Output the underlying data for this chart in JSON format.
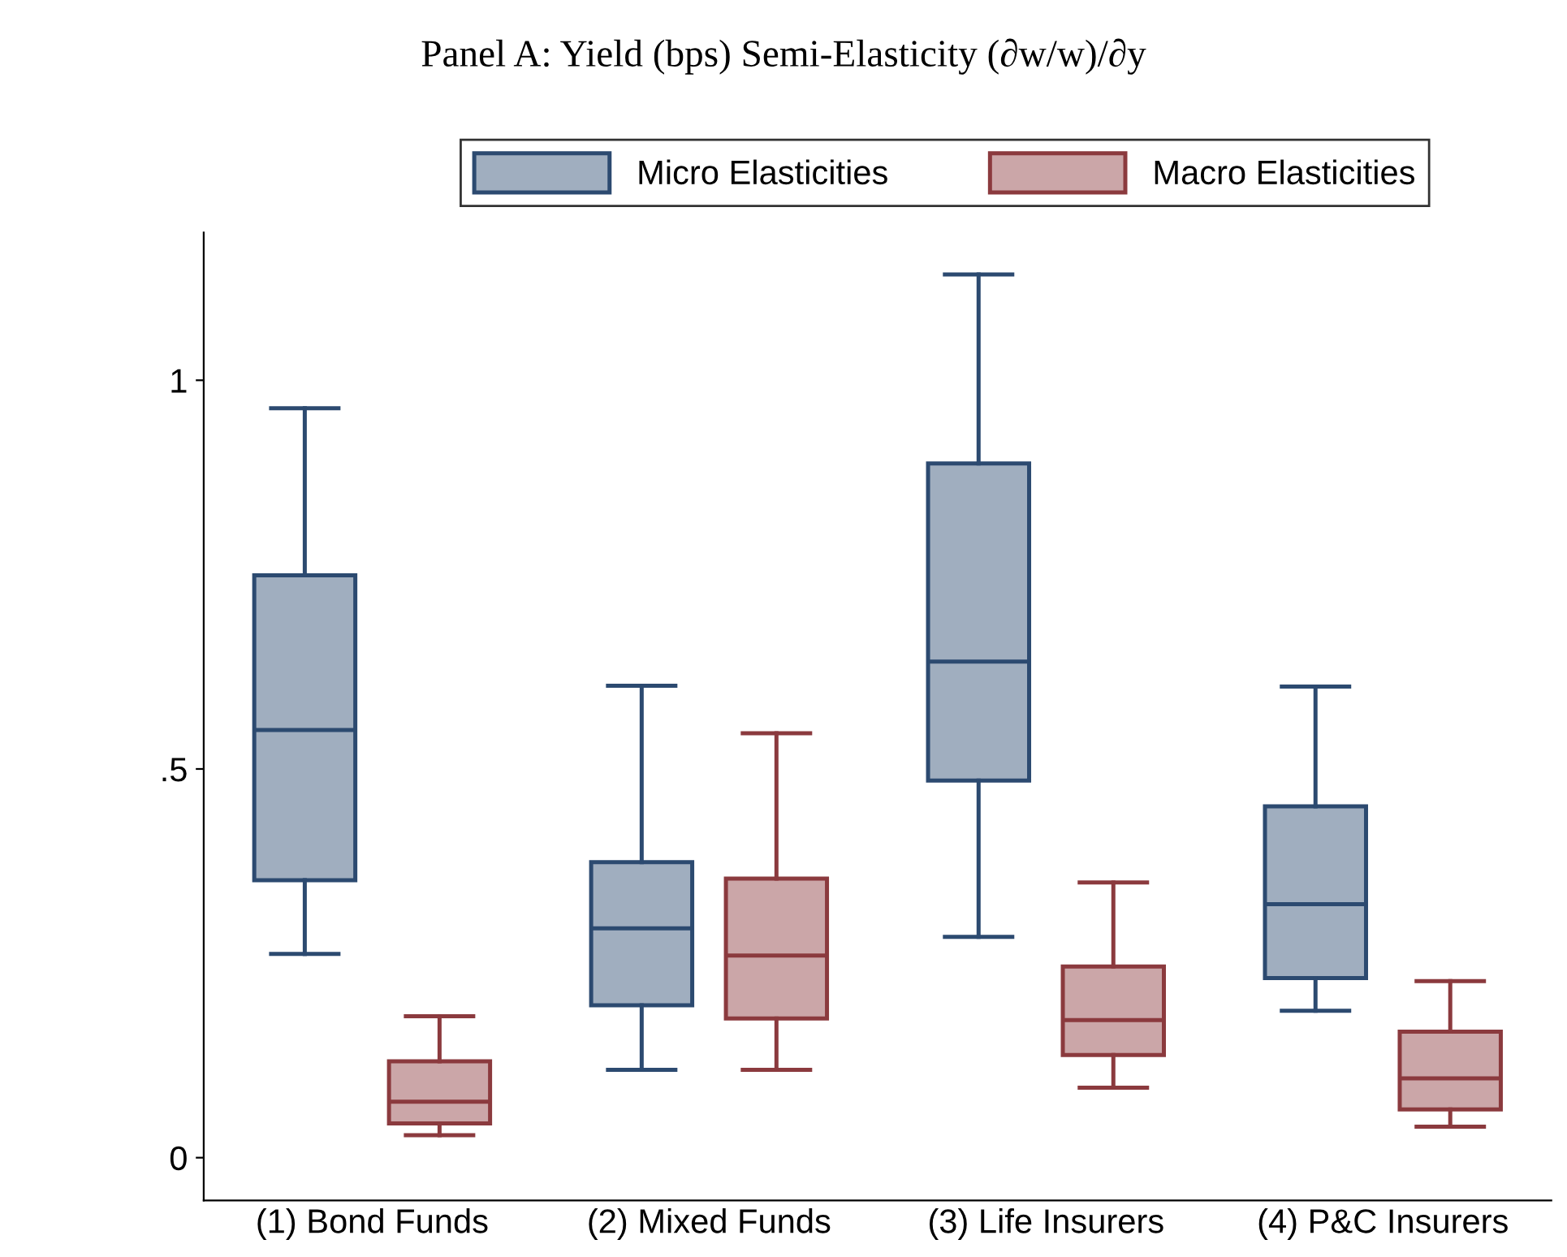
{
  "chart_data": {
    "type": "box",
    "title": "Panel A: Yield (bps) Semi-Elasticity (∂w/w)/∂y",
    "categories": [
      "(1) Bond Funds",
      "(2) Mixed Funds",
      "(3) Life Insurers",
      "(4) P&C Insurers"
    ],
    "series": [
      {
        "name": "Micro Elasticities",
        "color": "#2c4a70",
        "boxes": [
          {
            "low": 0.262,
            "q1": 0.357,
            "median": 0.55,
            "q3": 0.749,
            "high": 0.964
          },
          {
            "low": 0.113,
            "q1": 0.196,
            "median": 0.295,
            "q3": 0.38,
            "high": 0.607
          },
          {
            "low": 0.284,
            "q1": 0.485,
            "median": 0.638,
            "q3": 0.893,
            "high": 1.136
          },
          {
            "low": 0.189,
            "q1": 0.231,
            "median": 0.326,
            "q3": 0.452,
            "high": 0.606
          }
        ]
      },
      {
        "name": "Macro Elasticities",
        "color": "#8b3a3e",
        "boxes": [
          {
            "low": 0.029,
            "q1": 0.044,
            "median": 0.072,
            "q3": 0.124,
            "high": 0.182
          },
          {
            "low": 0.113,
            "q1": 0.179,
            "median": 0.26,
            "q3": 0.359,
            "high": 0.546
          },
          {
            "low": 0.09,
            "q1": 0.132,
            "median": 0.177,
            "q3": 0.246,
            "high": 0.354
          },
          {
            "low": 0.04,
            "q1": 0.062,
            "median": 0.102,
            "q3": 0.162,
            "high": 0.227
          }
        ]
      }
    ],
    "ylim": [
      -0.055,
      1.19
    ],
    "yticks": [
      0,
      {
        "value": 0.5,
        "label": ".5"
      },
      1
    ],
    "grid": false,
    "legend": "top"
  }
}
